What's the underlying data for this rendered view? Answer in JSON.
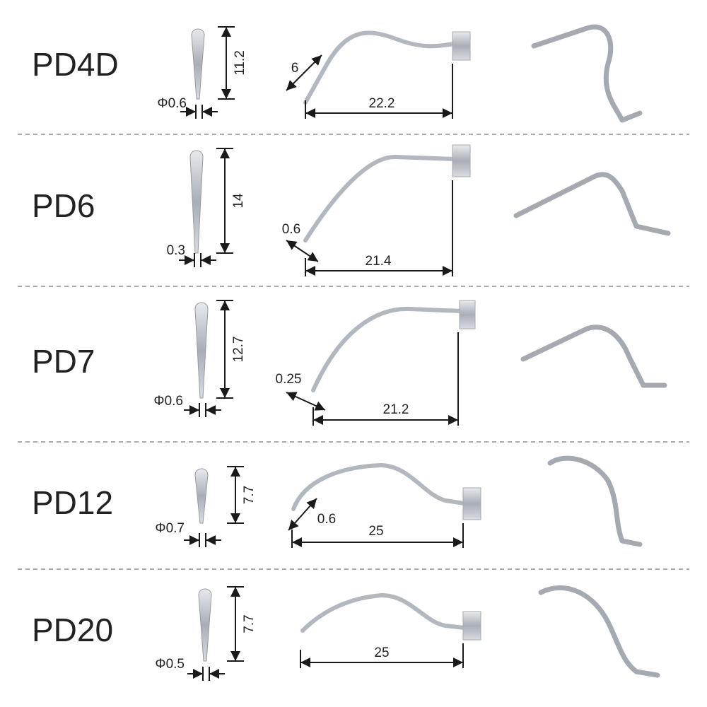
{
  "rows": [
    {
      "name": "PD4D",
      "tip": "Φ0.6",
      "height": "11.2",
      "length": "22.2",
      "extra": "6"
    },
    {
      "name": "PD6",
      "tip": "0.3",
      "height": "14",
      "length": "21.4",
      "extra": "0.6"
    },
    {
      "name": "PD7",
      "tip": "Φ0.6",
      "height": "12.7",
      "length": "21.2",
      "extra": "0.25"
    },
    {
      "name": "PD12",
      "tip": "Φ0.7",
      "height": "7.7",
      "length": "25",
      "extra": "0.6"
    },
    {
      "name": "PD20",
      "tip": "Φ0.5",
      "height": "7.7",
      "length": "25"
    }
  ]
}
